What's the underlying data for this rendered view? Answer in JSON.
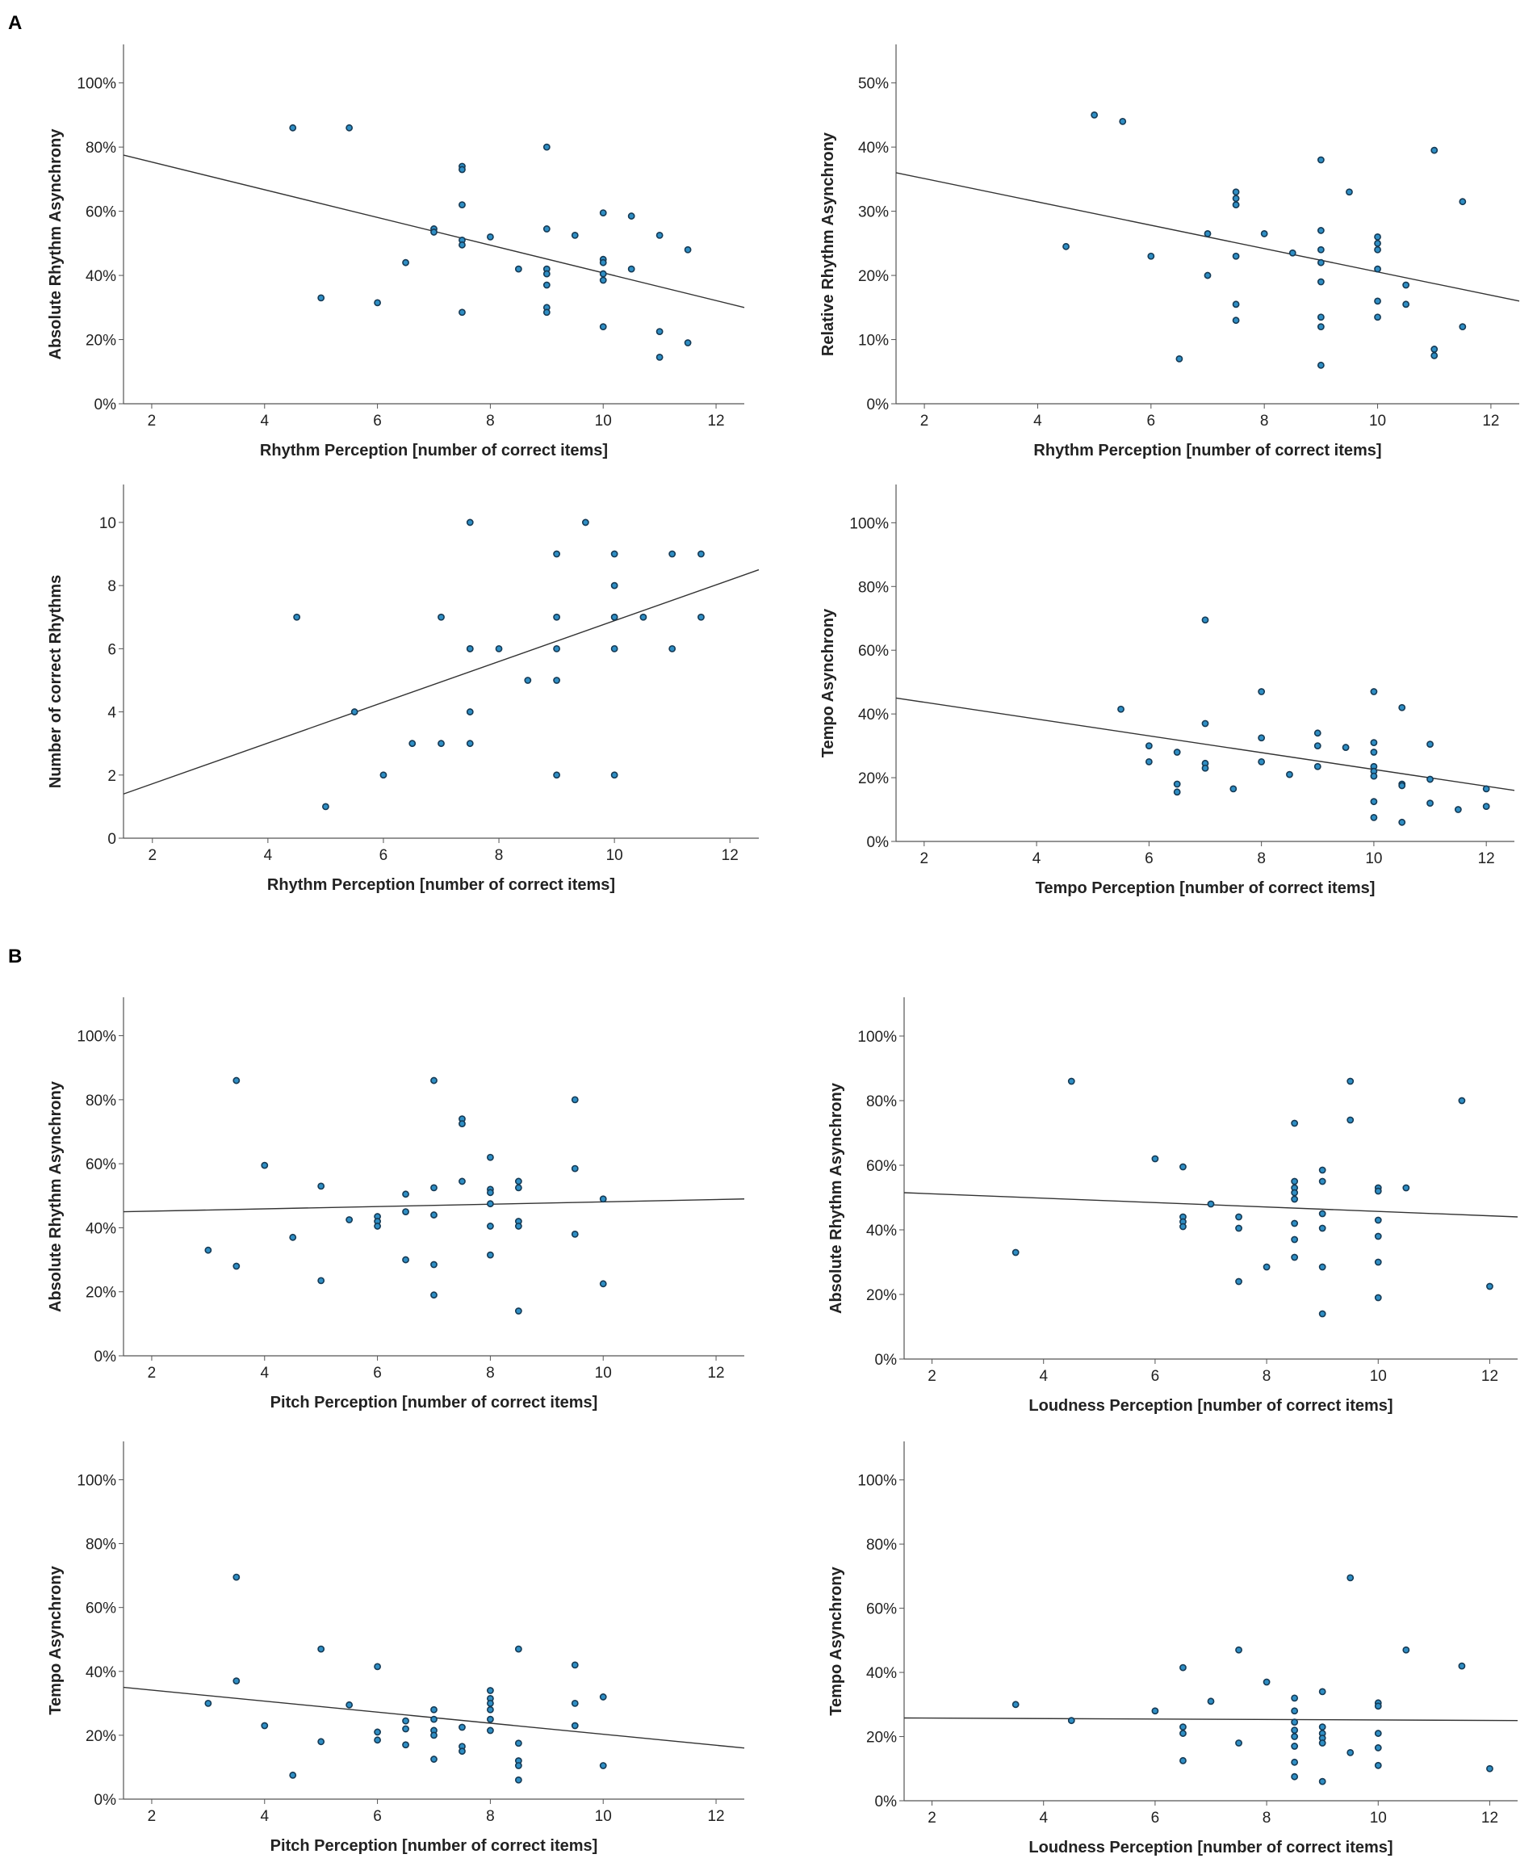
{
  "panels": [
    {
      "label": "A"
    },
    {
      "label": "B"
    }
  ],
  "chart_data": [
    {
      "type": "scatter",
      "xlabel": "Rhythm Perception [number of correct items]",
      "ylabel": "Absolute Rhythm Asynchrony",
      "xlim": [
        1.5,
        12.5
      ],
      "ylim": [
        0,
        112
      ],
      "xticks": [
        2,
        4,
        6,
        8,
        10,
        12
      ],
      "yticks": [
        0,
        20,
        40,
        60,
        80,
        100
      ],
      "ytick_labels": [
        "0%",
        "20%",
        "40%",
        "60%",
        "80%",
        "100%"
      ],
      "fit_line": {
        "x": [
          1.5,
          12.5
        ],
        "y": [
          77.5,
          30
        ]
      },
      "points": [
        [
          4.5,
          86
        ],
        [
          5.5,
          86
        ],
        [
          5,
          33
        ],
        [
          6,
          31.5
        ],
        [
          6.5,
          44
        ],
        [
          7,
          54.5
        ],
        [
          7,
          53.5
        ],
        [
          7.5,
          74
        ],
        [
          7.5,
          73
        ],
        [
          7.5,
          62
        ],
        [
          7.5,
          51
        ],
        [
          7.5,
          49.5
        ],
        [
          7.5,
          28.5
        ],
        [
          8,
          52
        ],
        [
          8.5,
          42
        ],
        [
          9,
          80
        ],
        [
          9,
          54.5
        ],
        [
          9,
          42
        ],
        [
          9,
          40.5
        ],
        [
          9,
          37
        ],
        [
          9,
          30
        ],
        [
          9,
          28.5
        ],
        [
          9.5,
          52.5
        ],
        [
          10,
          59.5
        ],
        [
          10,
          45
        ],
        [
          10,
          44
        ],
        [
          10,
          40.5
        ],
        [
          10,
          38.5
        ],
        [
          10,
          24
        ],
        [
          10.5,
          58.5
        ],
        [
          10.5,
          42
        ],
        [
          11,
          52.5
        ],
        [
          11,
          22.5
        ],
        [
          11,
          14.5
        ],
        [
          11.5,
          48
        ],
        [
          11.5,
          19
        ]
      ]
    },
    {
      "type": "scatter",
      "xlabel": "Rhythm Perception [number of correct items]",
      "ylabel": "Relative Rhythm Asynchrony",
      "xlim": [
        1.5,
        12.5
      ],
      "ylim": [
        0,
        56
      ],
      "xticks": [
        2,
        4,
        6,
        8,
        10,
        12
      ],
      "yticks": [
        0,
        10,
        20,
        30,
        40,
        50
      ],
      "ytick_labels": [
        "0%",
        "10%",
        "20%",
        "30%",
        "40%",
        "50%"
      ],
      "fit_line": {
        "x": [
          1.5,
          12.5
        ],
        "y": [
          36,
          16
        ]
      },
      "points": [
        [
          4.5,
          24.5
        ],
        [
          5,
          45
        ],
        [
          5.5,
          44
        ],
        [
          6,
          23
        ],
        [
          6.5,
          7
        ],
        [
          7,
          26.5
        ],
        [
          7,
          20
        ],
        [
          7.5,
          33
        ],
        [
          7.5,
          32
        ],
        [
          7.5,
          31
        ],
        [
          7.5,
          23
        ],
        [
          7.5,
          15.5
        ],
        [
          7.5,
          13
        ],
        [
          8,
          26.5
        ],
        [
          8.5,
          23.5
        ],
        [
          9,
          38
        ],
        [
          9,
          27
        ],
        [
          9,
          24
        ],
        [
          9,
          22
        ],
        [
          9,
          19
        ],
        [
          9,
          13.5
        ],
        [
          9,
          12
        ],
        [
          9,
          6
        ],
        [
          9.5,
          33
        ],
        [
          10,
          26
        ],
        [
          10,
          25
        ],
        [
          10,
          24
        ],
        [
          10,
          21
        ],
        [
          10,
          16
        ],
        [
          10,
          13.5
        ],
        [
          10.5,
          18.5
        ],
        [
          10.5,
          15.5
        ],
        [
          11,
          39.5
        ],
        [
          11,
          8.5
        ],
        [
          11,
          7.5
        ],
        [
          11.5,
          31.5
        ],
        [
          11.5,
          12
        ]
      ]
    },
    {
      "type": "scatter",
      "xlabel": "Rhythm Perception [number of correct items]",
      "ylabel": "Number of correct Rhythms",
      "xlim": [
        1.5,
        12.5
      ],
      "ylim": [
        0,
        11.2
      ],
      "xticks": [
        2,
        4,
        6,
        8,
        10,
        12
      ],
      "yticks": [
        0,
        2,
        4,
        6,
        8,
        10
      ],
      "ytick_labels": [
        "0",
        "2",
        "4",
        "6",
        "8",
        "10"
      ],
      "fit_line": {
        "x": [
          1.5,
          12.5
        ],
        "y": [
          1.4,
          8.5
        ]
      },
      "points": [
        [
          4.5,
          7
        ],
        [
          5,
          1
        ],
        [
          5.5,
          4
        ],
        [
          6,
          2
        ],
        [
          6.5,
          3
        ],
        [
          7,
          7
        ],
        [
          7,
          3
        ],
        [
          7.5,
          10
        ],
        [
          7.5,
          6
        ],
        [
          7.5,
          6
        ],
        [
          7.5,
          4
        ],
        [
          7.5,
          3
        ],
        [
          8,
          6
        ],
        [
          8.5,
          5
        ],
        [
          9,
          9
        ],
        [
          9,
          7
        ],
        [
          9,
          6
        ],
        [
          9,
          5
        ],
        [
          9,
          2
        ],
        [
          9.5,
          10
        ],
        [
          10,
          9
        ],
        [
          10,
          8
        ],
        [
          10,
          7
        ],
        [
          10,
          6
        ],
        [
          10,
          2
        ],
        [
          10.5,
          7
        ],
        [
          11,
          9
        ],
        [
          11,
          6
        ],
        [
          11.5,
          9
        ],
        [
          11.5,
          7
        ]
      ]
    },
    {
      "type": "scatter",
      "xlabel": "Tempo Perception [number of correct items]",
      "ylabel": "Tempo Asynchrony",
      "xlim": [
        1.5,
        12.5
      ],
      "ylim": [
        0,
        112
      ],
      "xticks": [
        2,
        4,
        6,
        8,
        10,
        12
      ],
      "yticks": [
        0,
        20,
        40,
        60,
        80,
        100
      ],
      "ytick_labels": [
        "0%",
        "20%",
        "40%",
        "60%",
        "80%",
        "100%"
      ],
      "fit_line": {
        "x": [
          1.5,
          12.5
        ],
        "y": [
          45,
          16
        ]
      },
      "points": [
        [
          5.5,
          41.5
        ],
        [
          6,
          30
        ],
        [
          6,
          25
        ],
        [
          6.5,
          28
        ],
        [
          6.5,
          18
        ],
        [
          6.5,
          15.5
        ],
        [
          7,
          69.5
        ],
        [
          7,
          37
        ],
        [
          7,
          24.5
        ],
        [
          7,
          23
        ],
        [
          7.5,
          16.5
        ],
        [
          8,
          47
        ],
        [
          8,
          32.5
        ],
        [
          8,
          25
        ],
        [
          8.5,
          21
        ],
        [
          9,
          34
        ],
        [
          9,
          30
        ],
        [
          9,
          23.5
        ],
        [
          9.5,
          29.5
        ],
        [
          10,
          47
        ],
        [
          10,
          31
        ],
        [
          10,
          28
        ],
        [
          10,
          23.5
        ],
        [
          10,
          22
        ],
        [
          10,
          20.5
        ],
        [
          10,
          12.5
        ],
        [
          10,
          7.5
        ],
        [
          10.5,
          42
        ],
        [
          10.5,
          18
        ],
        [
          10.5,
          17.5
        ],
        [
          10.5,
          6
        ],
        [
          11,
          30.5
        ],
        [
          11,
          19.5
        ],
        [
          11,
          12
        ],
        [
          11.5,
          10
        ],
        [
          12,
          16.5
        ],
        [
          12,
          11
        ]
      ]
    },
    {
      "type": "scatter",
      "xlabel": "Pitch Perception [number of correct items]",
      "ylabel": "Absolute Rhythm Asynchrony",
      "xlim": [
        1.5,
        12.5
      ],
      "ylim": [
        0,
        112
      ],
      "xticks": [
        2,
        4,
        6,
        8,
        10,
        12
      ],
      "yticks": [
        0,
        20,
        40,
        60,
        80,
        100
      ],
      "ytick_labels": [
        "0%",
        "20%",
        "40%",
        "60%",
        "80%",
        "100%"
      ],
      "fit_line": {
        "x": [
          1.5,
          12.5
        ],
        "y": [
          45,
          49
        ]
      },
      "points": [
        [
          3,
          33
        ],
        [
          3.5,
          86
        ],
        [
          3.5,
          28
        ],
        [
          4,
          59.5
        ],
        [
          4.5,
          37
        ],
        [
          5,
          53
        ],
        [
          5,
          23.5
        ],
        [
          5.5,
          42.5
        ],
        [
          6,
          43.5
        ],
        [
          6,
          42
        ],
        [
          6,
          40.5
        ],
        [
          6.5,
          50.5
        ],
        [
          6.5,
          45
        ],
        [
          6.5,
          30
        ],
        [
          7,
          86
        ],
        [
          7,
          52.5
        ],
        [
          7,
          44
        ],
        [
          7,
          28.5
        ],
        [
          7,
          19
        ],
        [
          7.5,
          74
        ],
        [
          7.5,
          72.5
        ],
        [
          7.5,
          54.5
        ],
        [
          8,
          62
        ],
        [
          8,
          52
        ],
        [
          8,
          51
        ],
        [
          8,
          47.5
        ],
        [
          8,
          40.5
        ],
        [
          8,
          31.5
        ],
        [
          8.5,
          54.5
        ],
        [
          8.5,
          52.5
        ],
        [
          8.5,
          42
        ],
        [
          8.5,
          40.5
        ],
        [
          8.5,
          14
        ],
        [
          9.5,
          80
        ],
        [
          9.5,
          58.5
        ],
        [
          9.5,
          38
        ],
        [
          10,
          49
        ],
        [
          10,
          22.5
        ]
      ]
    },
    {
      "type": "scatter",
      "xlabel": "Loudness Perception [number of correct items]",
      "ylabel": "Absolute Rhythm Asynchrony",
      "xlim": [
        1.5,
        12.5
      ],
      "ylim": [
        0,
        112
      ],
      "xticks": [
        2,
        4,
        6,
        8,
        10,
        12
      ],
      "yticks": [
        0,
        20,
        40,
        60,
        80,
        100
      ],
      "ytick_labels": [
        "0%",
        "20%",
        "40%",
        "60%",
        "80%",
        "100%"
      ],
      "fit_line": {
        "x": [
          1.5,
          12.5
        ],
        "y": [
          51.5,
          44
        ]
      },
      "points": [
        [
          3.5,
          33
        ],
        [
          4.5,
          86
        ],
        [
          6,
          62
        ],
        [
          6.5,
          59.5
        ],
        [
          6.5,
          44
        ],
        [
          6.5,
          42.5
        ],
        [
          6.5,
          41
        ],
        [
          7,
          48
        ],
        [
          7.5,
          44
        ],
        [
          7.5,
          40.5
        ],
        [
          7.5,
          24
        ],
        [
          8,
          28.5
        ],
        [
          8.5,
          73
        ],
        [
          8.5,
          55
        ],
        [
          8.5,
          53
        ],
        [
          8.5,
          51.5
        ],
        [
          8.5,
          49.5
        ],
        [
          8.5,
          42
        ],
        [
          8.5,
          37
        ],
        [
          8.5,
          31.5
        ],
        [
          9,
          58.5
        ],
        [
          9,
          55
        ],
        [
          9,
          45
        ],
        [
          9,
          40.5
        ],
        [
          9,
          28.5
        ],
        [
          9,
          14
        ],
        [
          9.5,
          86
        ],
        [
          9.5,
          74
        ],
        [
          10,
          53
        ],
        [
          10,
          52
        ],
        [
          10,
          43
        ],
        [
          10,
          38
        ],
        [
          10,
          30
        ],
        [
          10,
          19
        ],
        [
          10.5,
          53
        ],
        [
          11.5,
          80
        ],
        [
          12,
          22.5
        ]
      ]
    },
    {
      "type": "scatter",
      "xlabel": "Pitch Perception [number of correct items]",
      "ylabel": "Tempo Asynchrony",
      "xlim": [
        1.5,
        12.5
      ],
      "ylim": [
        0,
        112
      ],
      "xticks": [
        2,
        4,
        6,
        8,
        10,
        12
      ],
      "yticks": [
        0,
        20,
        40,
        60,
        80,
        100
      ],
      "ytick_labels": [
        "0%",
        "20%",
        "40%",
        "60%",
        "80%",
        "100%"
      ],
      "fit_line": {
        "x": [
          1.5,
          12.5
        ],
        "y": [
          35,
          16
        ]
      },
      "points": [
        [
          3,
          30
        ],
        [
          3.5,
          69.5
        ],
        [
          3.5,
          37
        ],
        [
          4,
          23
        ],
        [
          4.5,
          7.5
        ],
        [
          5,
          47
        ],
        [
          5,
          18
        ],
        [
          5.5,
          29.5
        ],
        [
          6,
          41.5
        ],
        [
          6,
          21
        ],
        [
          6,
          18.5
        ],
        [
          6.5,
          24.5
        ],
        [
          6.5,
          22
        ],
        [
          6.5,
          17
        ],
        [
          7,
          28
        ],
        [
          7,
          25
        ],
        [
          7,
          21.5
        ],
        [
          7,
          20
        ],
        [
          7,
          12.5
        ],
        [
          7.5,
          22.5
        ],
        [
          7.5,
          16.5
        ],
        [
          7.5,
          15
        ],
        [
          8,
          34
        ],
        [
          8,
          31.5
        ],
        [
          8,
          30
        ],
        [
          8,
          28
        ],
        [
          8,
          25
        ],
        [
          8,
          21.5
        ],
        [
          8.5,
          47
        ],
        [
          8.5,
          17.5
        ],
        [
          8.5,
          12
        ],
        [
          8.5,
          10.5
        ],
        [
          8.5,
          6
        ],
        [
          9.5,
          42
        ],
        [
          9.5,
          30
        ],
        [
          9.5,
          23
        ],
        [
          10,
          32
        ],
        [
          10,
          10.5
        ]
      ]
    },
    {
      "type": "scatter",
      "xlabel": "Loudness Perception [number of correct items]",
      "ylabel": "Tempo Asynchrony",
      "xlim": [
        1.5,
        12.5
      ],
      "ylim": [
        0,
        112
      ],
      "xticks": [
        2,
        4,
        6,
        8,
        10,
        12
      ],
      "yticks": [
        0,
        20,
        40,
        60,
        80,
        100
      ],
      "ytick_labels": [
        "0%",
        "20%",
        "40%",
        "60%",
        "80%",
        "100%"
      ],
      "fit_line": {
        "x": [
          1.5,
          12.5
        ],
        "y": [
          25.8,
          25
        ]
      },
      "points": [
        [
          3.5,
          30
        ],
        [
          4.5,
          25
        ],
        [
          6,
          28
        ],
        [
          6.5,
          41.5
        ],
        [
          6.5,
          23
        ],
        [
          6.5,
          21
        ],
        [
          6.5,
          12.5
        ],
        [
          7,
          31
        ],
        [
          7.5,
          47
        ],
        [
          7.5,
          18
        ],
        [
          8,
          37
        ],
        [
          8.5,
          32
        ],
        [
          8.5,
          28
        ],
        [
          8.5,
          24.5
        ],
        [
          8.5,
          22
        ],
        [
          8.5,
          20
        ],
        [
          8.5,
          17
        ],
        [
          8.5,
          12
        ],
        [
          8.5,
          7.5
        ],
        [
          9,
          34
        ],
        [
          9,
          23
        ],
        [
          9,
          21
        ],
        [
          9,
          19.5
        ],
        [
          9,
          18
        ],
        [
          9,
          6
        ],
        [
          9.5,
          69.5
        ],
        [
          9.5,
          15
        ],
        [
          10,
          30.5
        ],
        [
          10,
          29.5
        ],
        [
          10,
          21
        ],
        [
          10,
          16.5
        ],
        [
          10,
          11
        ],
        [
          10.5,
          47
        ],
        [
          11.5,
          42
        ],
        [
          12,
          10
        ]
      ]
    }
  ]
}
